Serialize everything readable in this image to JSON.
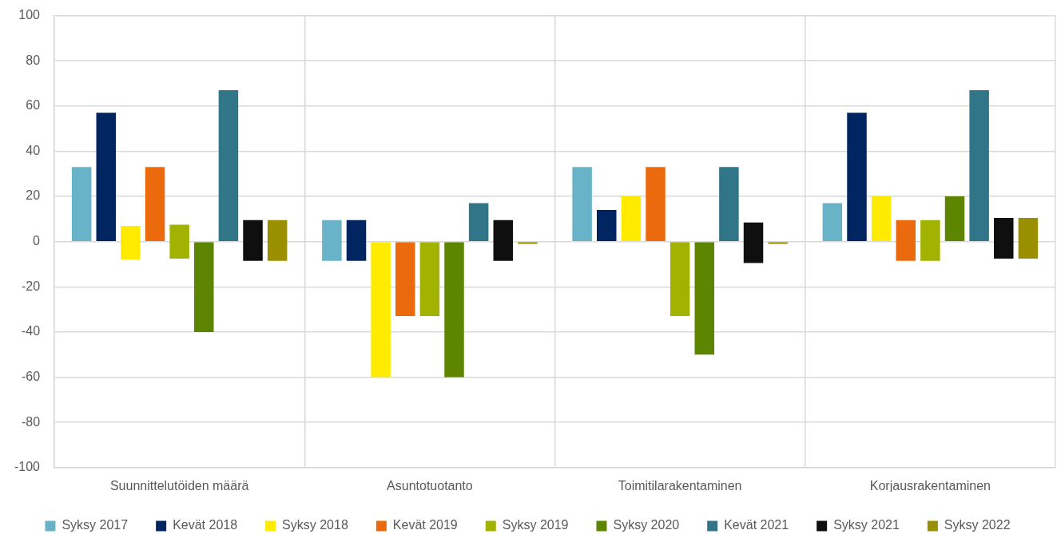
{
  "chart_data": {
    "type": "bar",
    "categories": [
      "Suunnittelutöiden määrä",
      "Asuntotuotanto",
      "Toimitilarakentaminen",
      "Korjausrakentaminen"
    ],
    "series": [
      {
        "name": "Syksy 2017",
        "color": "#69b3c8",
        "values": [
          33,
          18,
          33,
          17
        ],
        "base": [
          0,
          -8.5,
          0,
          0
        ]
      },
      {
        "name": "Kevät 2018",
        "color": "#002561",
        "values": [
          57,
          18,
          14,
          57
        ],
        "base": [
          0,
          -8.5,
          0,
          0
        ]
      },
      {
        "name": "Syksy 2018",
        "color": "#ffeb00",
        "values": [
          15,
          -60,
          20,
          20
        ],
        "base": [
          -8,
          0,
          0,
          0
        ]
      },
      {
        "name": "Kevät 2019",
        "color": "#eb6a0d",
        "values": [
          33,
          -33,
          33,
          18
        ],
        "base": [
          0,
          0,
          0,
          -8.5
        ]
      },
      {
        "name": "Syksy 2019",
        "color": "#a1b300",
        "values": [
          15,
          -33,
          -33,
          18
        ],
        "base": [
          -7.5,
          0,
          0,
          -8.5
        ]
      },
      {
        "name": "Syksy 2020",
        "color": "#5e8500",
        "values": [
          -40,
          -60,
          -50,
          20
        ],
        "base": [
          0,
          0,
          0,
          0
        ]
      },
      {
        "name": "Kevät 2021",
        "color": "#307688",
        "values": [
          67,
          17,
          33,
          67
        ],
        "base": [
          0,
          0,
          0,
          0
        ]
      },
      {
        "name": "Syksy 2021",
        "color": "#100f10",
        "values": [
          18,
          18,
          18,
          18
        ],
        "base": [
          -8.5,
          -8.5,
          -9.5,
          -7.5
        ]
      },
      {
        "name": "Syksy 2022",
        "color": "#9a8f00",
        "values": [
          18,
          -1,
          -1,
          18
        ],
        "base": [
          -8.5,
          0,
          0,
          -7.5
        ]
      }
    ],
    "ylim": [
      -100,
      100
    ],
    "yticks": [
      -100,
      -80,
      -60,
      -40,
      -20,
      0,
      20,
      40,
      60,
      80,
      100
    ],
    "grid": true,
    "legend": "bottom"
  }
}
